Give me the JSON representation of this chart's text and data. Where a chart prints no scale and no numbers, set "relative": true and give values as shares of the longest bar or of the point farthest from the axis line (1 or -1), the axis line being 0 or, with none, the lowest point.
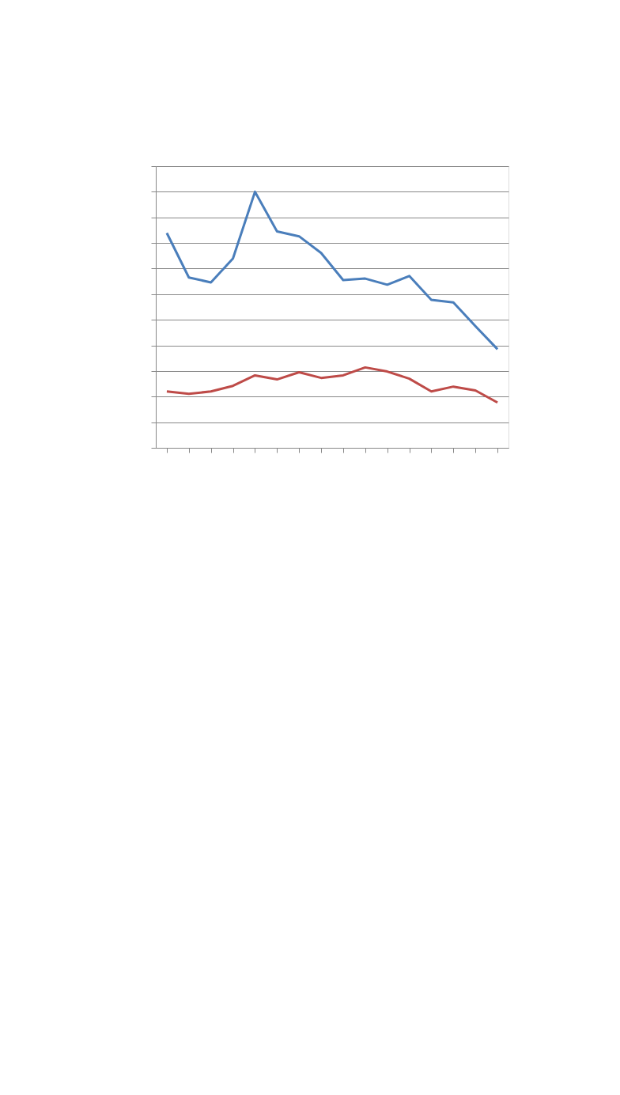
{
  "chart_data": {
    "type": "line",
    "relative": true,
    "categories": [
      null,
      null,
      null,
      null,
      null,
      null,
      null,
      null,
      null,
      null,
      null,
      null,
      null,
      null,
      null,
      null
    ],
    "series": [
      {
        "color": "#4a7ebb",
        "values": [
          0.839,
          0.665,
          0.646,
          0.739,
          1,
          0.845,
          0.826,
          0.761,
          0.655,
          0.661,
          0.637,
          0.671,
          0.578,
          0.568,
          0.475,
          0.385
        ]
      },
      {
        "color": "#be4b48",
        "values": [
          0.22,
          0.211,
          0.22,
          0.242,
          0.283,
          0.267,
          0.295,
          0.273,
          0.283,
          0.314,
          0.298,
          0.27,
          0.22,
          0.239,
          0.224,
          0.177
        ]
      }
    ],
    "grid": "y",
    "marker": "none",
    "line_style": "solid"
  }
}
